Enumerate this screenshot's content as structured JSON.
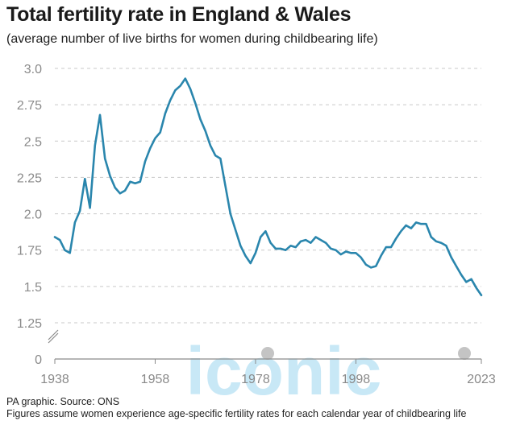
{
  "title": "Total fertility rate in England & Wales",
  "subtitle": "(average number of live births for women during childbearing life)",
  "footer": {
    "source": "PA graphic. Source: ONS",
    "note": "Figures assume women experience age-specific fertility rates for each calendar year of childbearing life"
  },
  "watermark": "iconic",
  "colors": {
    "line": "#2a86ad",
    "grid": "#c9c9c9",
    "axis": "#8a8a8a",
    "watermark": "#bfe4f5"
  },
  "chart_data": {
    "type": "line",
    "x_ticks": [
      "1938",
      "1958",
      "1978",
      "1998",
      "2023"
    ],
    "y_ticks": [
      "3.0",
      "2.75",
      "2.5",
      "2.25",
      "2.0",
      "1.75",
      "1.5",
      "1.25",
      "0"
    ],
    "xlim": [
      1938,
      2023
    ],
    "ylim": [
      1.25,
      3.0
    ],
    "axis_break": true,
    "grid": "horizontal dashed",
    "x": [
      1938,
      1939,
      1940,
      1941,
      1942,
      1943,
      1944,
      1945,
      1946,
      1947,
      1948,
      1949,
      1950,
      1951,
      1952,
      1953,
      1954,
      1955,
      1956,
      1957,
      1958,
      1959,
      1960,
      1961,
      1962,
      1963,
      1964,
      1965,
      1966,
      1967,
      1968,
      1969,
      1970,
      1971,
      1972,
      1973,
      1974,
      1975,
      1976,
      1977,
      1978,
      1979,
      1980,
      1981,
      1982,
      1983,
      1984,
      1985,
      1986,
      1987,
      1988,
      1989,
      1990,
      1991,
      1992,
      1993,
      1994,
      1995,
      1996,
      1997,
      1998,
      1999,
      2000,
      2001,
      2002,
      2003,
      2004,
      2005,
      2006,
      2007,
      2008,
      2009,
      2010,
      2011,
      2012,
      2013,
      2014,
      2015,
      2016,
      2017,
      2018,
      2019,
      2020,
      2021,
      2022,
      2023
    ],
    "y": [
      1.84,
      1.82,
      1.75,
      1.73,
      1.94,
      2.02,
      2.24,
      2.04,
      2.47,
      2.68,
      2.38,
      2.26,
      2.18,
      2.14,
      2.16,
      2.22,
      2.21,
      2.22,
      2.36,
      2.45,
      2.52,
      2.56,
      2.69,
      2.78,
      2.85,
      2.88,
      2.93,
      2.86,
      2.76,
      2.65,
      2.57,
      2.47,
      2.4,
      2.38,
      2.19,
      2.0,
      1.89,
      1.78,
      1.71,
      1.66,
      1.73,
      1.84,
      1.88,
      1.8,
      1.76,
      1.76,
      1.75,
      1.78,
      1.77,
      1.81,
      1.82,
      1.8,
      1.84,
      1.82,
      1.8,
      1.76,
      1.75,
      1.72,
      1.74,
      1.73,
      1.73,
      1.7,
      1.65,
      1.63,
      1.64,
      1.71,
      1.77,
      1.77,
      1.83,
      1.88,
      1.92,
      1.9,
      1.94,
      1.93,
      1.93,
      1.84,
      1.81,
      1.8,
      1.78,
      1.7,
      1.64,
      1.58,
      1.53,
      1.55,
      1.49,
      1.44
    ]
  }
}
